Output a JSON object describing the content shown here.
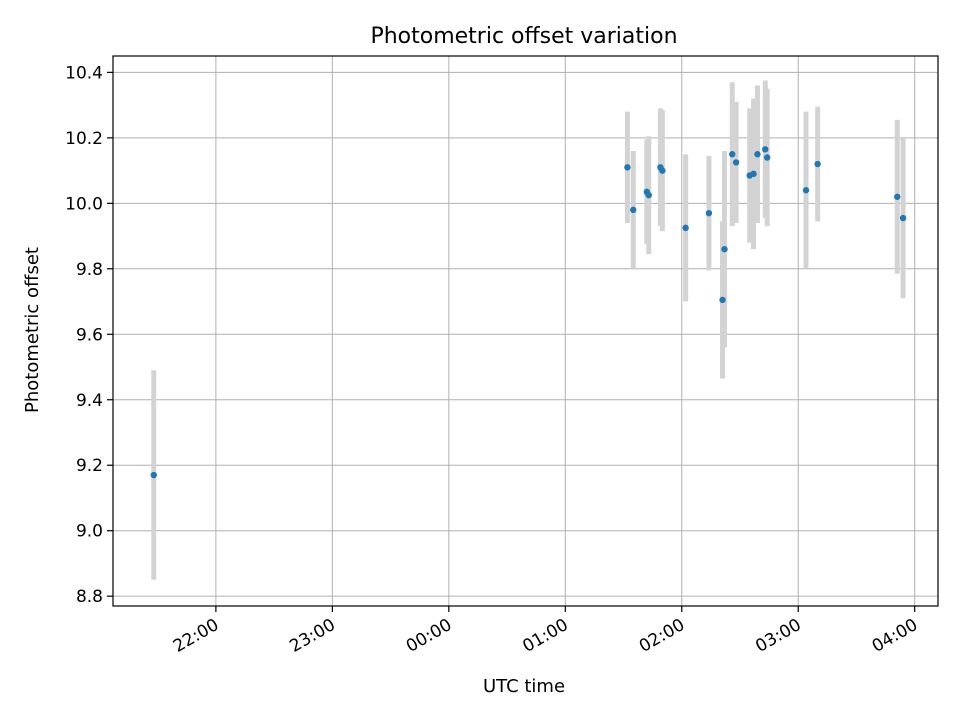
{
  "chart_data": {
    "type": "scatter",
    "title": "Photometric offset variation",
    "xlabel": "UTC time",
    "ylabel": "Photometric offset",
    "x_axis_type": "time",
    "x_range": [
      "21:07",
      "04:12"
    ],
    "ylim": [
      8.77,
      10.45
    ],
    "x_ticks": [
      "22:00",
      "23:00",
      "00:00",
      "01:00",
      "02:00",
      "03:00",
      "04:00"
    ],
    "x_tick_values": [
      "22:00",
      "23:00",
      "00:00",
      "01:00",
      "02:00",
      "03:00",
      "04:00"
    ],
    "y_ticks": [
      8.8,
      9.0,
      9.2,
      9.4,
      9.6,
      9.8,
      10.0,
      10.2,
      10.4
    ],
    "y_tick_labels": [
      "8.8",
      "9.0",
      "9.2",
      "9.4",
      "9.6",
      "9.8",
      "10.0",
      "10.2",
      "10.4"
    ],
    "grid": true,
    "legend": "none",
    "marker_color": "#1f77b4",
    "errorbar_color": "#d3d3d3",
    "points": [
      {
        "x": "21:28",
        "y": 9.17,
        "err": 0.32
      },
      {
        "x": "01:32",
        "y": 10.11,
        "err": 0.17
      },
      {
        "x": "01:35",
        "y": 9.98,
        "err": 0.18
      },
      {
        "x": "01:42",
        "y": 10.035,
        "err": 0.16
      },
      {
        "x": "01:43",
        "y": 10.025,
        "err": 0.18
      },
      {
        "x": "01:49",
        "y": 10.11,
        "err": 0.18
      },
      {
        "x": "01:50",
        "y": 10.1,
        "err": 0.185
      },
      {
        "x": "02:02",
        "y": 9.925,
        "err": 0.225
      },
      {
        "x": "02:14",
        "y": 9.97,
        "err": 0.175
      },
      {
        "x": "02:21",
        "y": 9.705,
        "err": 0.24
      },
      {
        "x": "02:22",
        "y": 9.86,
        "err": 0.3
      },
      {
        "x": "02:26",
        "y": 10.15,
        "err": 0.22
      },
      {
        "x": "02:28",
        "y": 10.125,
        "err": 0.185
      },
      {
        "x": "02:35",
        "y": 10.085,
        "err": 0.205
      },
      {
        "x": "02:37",
        "y": 10.09,
        "err": 0.23
      },
      {
        "x": "02:39",
        "y": 10.15,
        "err": 0.21
      },
      {
        "x": "02:43",
        "y": 10.165,
        "err": 0.21
      },
      {
        "x": "02:44",
        "y": 10.14,
        "err": 0.21
      },
      {
        "x": "03:04",
        "y": 10.04,
        "err": 0.24
      },
      {
        "x": "03:10",
        "y": 10.12,
        "err": 0.175
      },
      {
        "x": "03:51",
        "y": 10.02,
        "err": 0.235
      },
      {
        "x": "03:54",
        "y": 9.955,
        "err": 0.245
      }
    ]
  }
}
